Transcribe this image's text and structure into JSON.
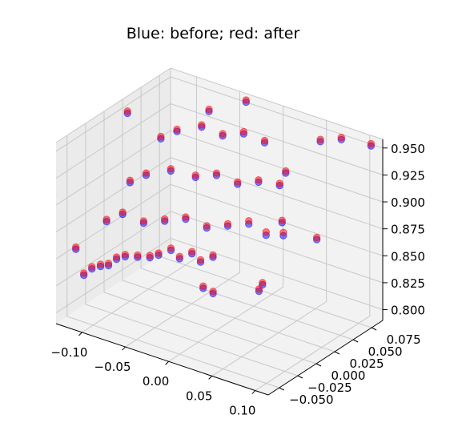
{
  "chart_data": {
    "type": "scatter",
    "projection": "3d",
    "title": "Blue: before; red: after",
    "xlabel": "",
    "ylabel": "",
    "zlabel": "",
    "grid": true,
    "colors": {
      "before": "#0000ff",
      "after": "#ff0000",
      "pane": "#f2f2f2",
      "pane_side": "#ebebeb",
      "grid": "#c8c8c8"
    },
    "axes": {
      "x": {
        "ticks": [
          -0.1,
          -0.05,
          0.0,
          0.05,
          0.1
        ],
        "tick_labels": [
          "−0.10",
          "−0.05",
          "0.00",
          "0.05",
          "0.10"
        ],
        "range": [
          -0.13,
          0.115
        ]
      },
      "y": {
        "ticks": [
          -0.05,
          -0.025,
          0.0,
          0.025,
          0.05,
          0.075
        ],
        "tick_labels": [
          "−0.050",
          "−0.025",
          "0.000",
          "0.025",
          "0.050",
          "0.075"
        ],
        "range": [
          -0.065,
          0.09
        ]
      },
      "z": {
        "ticks": [
          0.8,
          0.825,
          0.85,
          0.875,
          0.9,
          0.925,
          0.95
        ],
        "tick_labels": [
          "0.800",
          "0.825",
          "0.850",
          "0.875",
          "0.900",
          "0.925",
          "0.950"
        ],
        "range": [
          0.79,
          0.958
        ]
      }
    },
    "series": [
      {
        "color": "#0000ff",
        "alpha": 0.5,
        "points": [
          [
            -0.12,
            -0.05,
            0.855
          ],
          [
            -0.115,
            -0.045,
            0.83
          ],
          [
            -0.11,
            -0.04,
            0.835
          ],
          [
            -0.1,
            -0.04,
            0.84
          ],
          [
            -0.095,
            -0.035,
            0.84
          ],
          [
            -0.09,
            -0.03,
            0.845
          ],
          [
            -0.08,
            -0.03,
            0.85
          ],
          [
            -0.07,
            -0.025,
            0.85
          ],
          [
            -0.06,
            -0.02,
            0.85
          ],
          [
            -0.05,
            -0.02,
            0.855
          ],
          [
            -0.04,
            -0.015,
            0.86
          ],
          [
            -0.03,
            -0.015,
            0.855
          ],
          [
            -0.02,
            -0.01,
            0.86
          ],
          [
            -0.01,
            -0.01,
            0.855
          ],
          [
            0.0,
            -0.005,
            0.86
          ],
          [
            -0.11,
            -0.02,
            0.87
          ],
          [
            -0.1,
            -0.01,
            0.875
          ],
          [
            -0.08,
            -0.005,
            0.87
          ],
          [
            -0.06,
            0.0,
            0.875
          ],
          [
            -0.04,
            0.005,
            0.88
          ],
          [
            -0.02,
            0.01,
            0.875
          ],
          [
            0.0,
            0.015,
            0.88
          ],
          [
            0.02,
            0.02,
            0.885
          ],
          [
            0.04,
            0.02,
            0.88
          ],
          [
            0.06,
            0.02,
            0.885
          ],
          [
            -0.1,
            0.0,
            0.9
          ],
          [
            -0.09,
            0.01,
            0.905
          ],
          [
            -0.07,
            0.02,
            0.91
          ],
          [
            -0.05,
            0.03,
            0.905
          ],
          [
            -0.03,
            0.035,
            0.91
          ],
          [
            -0.01,
            0.04,
            0.905
          ],
          [
            0.01,
            0.045,
            0.91
          ],
          [
            0.03,
            0.05,
            0.91
          ],
          [
            -0.09,
            0.03,
            0.93
          ],
          [
            -0.08,
            0.04,
            0.935
          ],
          [
            -0.06,
            0.05,
            0.94
          ],
          [
            -0.04,
            0.055,
            0.935
          ],
          [
            -0.02,
            0.06,
            0.94
          ],
          [
            0.0,
            0.065,
            0.935
          ],
          [
            0.1,
            -0.06,
            0.88
          ],
          [
            0.06,
            0.07,
            0.95
          ],
          [
            0.08,
            0.075,
            0.955
          ],
          [
            0.11,
            0.08,
            0.955
          ],
          [
            0.02,
            0.07,
            0.91
          ],
          [
            -0.12,
            0.02,
            0.95
          ],
          [
            0.05,
            0.03,
            0.89
          ],
          [
            0.09,
            0.03,
            0.885
          ],
          [
            -0.06,
            0.06,
            0.95
          ],
          [
            -0.03,
            0.075,
            0.96
          ],
          [
            0.03,
            -0.04,
            0.85
          ],
          [
            0.07,
            -0.02,
            0.86
          ],
          [
            0.01,
            -0.03,
            0.845
          ]
        ]
      },
      {
        "color": "#ff0000",
        "alpha": 0.5,
        "points": [
          [
            -0.12,
            -0.05,
            0.857
          ],
          [
            -0.115,
            -0.045,
            0.832
          ],
          [
            -0.11,
            -0.04,
            0.837
          ],
          [
            -0.1,
            -0.04,
            0.842
          ],
          [
            -0.095,
            -0.035,
            0.842
          ],
          [
            -0.09,
            -0.03,
            0.847
          ],
          [
            -0.08,
            -0.03,
            0.852
          ],
          [
            -0.07,
            -0.025,
            0.852
          ],
          [
            -0.06,
            -0.02,
            0.852
          ],
          [
            -0.05,
            -0.02,
            0.857
          ],
          [
            -0.04,
            -0.015,
            0.862
          ],
          [
            -0.03,
            -0.015,
            0.857
          ],
          [
            -0.02,
            -0.01,
            0.862
          ],
          [
            -0.01,
            -0.01,
            0.857
          ],
          [
            0.0,
            -0.005,
            0.862
          ],
          [
            -0.11,
            -0.02,
            0.872
          ],
          [
            -0.1,
            -0.01,
            0.877
          ],
          [
            -0.08,
            -0.005,
            0.872
          ],
          [
            -0.06,
            0.0,
            0.877
          ],
          [
            -0.04,
            0.005,
            0.882
          ],
          [
            -0.02,
            0.01,
            0.877
          ],
          [
            0.0,
            0.015,
            0.882
          ],
          [
            0.02,
            0.02,
            0.888
          ],
          [
            0.04,
            0.02,
            0.883
          ],
          [
            0.06,
            0.02,
            0.888
          ],
          [
            -0.1,
            0.0,
            0.902
          ],
          [
            -0.09,
            0.01,
            0.907
          ],
          [
            -0.07,
            0.02,
            0.912
          ],
          [
            -0.05,
            0.03,
            0.907
          ],
          [
            -0.03,
            0.035,
            0.912
          ],
          [
            -0.01,
            0.04,
            0.907
          ],
          [
            0.01,
            0.045,
            0.912
          ],
          [
            0.03,
            0.05,
            0.912
          ],
          [
            -0.09,
            0.03,
            0.932
          ],
          [
            -0.08,
            0.04,
            0.937
          ],
          [
            -0.06,
            0.05,
            0.942
          ],
          [
            -0.04,
            0.055,
            0.937
          ],
          [
            -0.02,
            0.06,
            0.942
          ],
          [
            0.0,
            0.065,
            0.937
          ],
          [
            0.1,
            -0.06,
            0.882
          ],
          [
            0.06,
            0.07,
            0.952
          ],
          [
            0.08,
            0.075,
            0.957
          ],
          [
            0.11,
            0.08,
            0.957
          ],
          [
            0.02,
            0.07,
            0.912
          ],
          [
            -0.12,
            0.02,
            0.952
          ],
          [
            0.05,
            0.03,
            0.892
          ],
          [
            0.09,
            0.03,
            0.887
          ],
          [
            -0.06,
            0.06,
            0.952
          ],
          [
            -0.03,
            0.075,
            0.962
          ],
          [
            0.03,
            -0.04,
            0.852
          ],
          [
            0.07,
            -0.02,
            0.862
          ],
          [
            0.01,
            -0.03,
            0.847
          ]
        ]
      }
    ]
  }
}
